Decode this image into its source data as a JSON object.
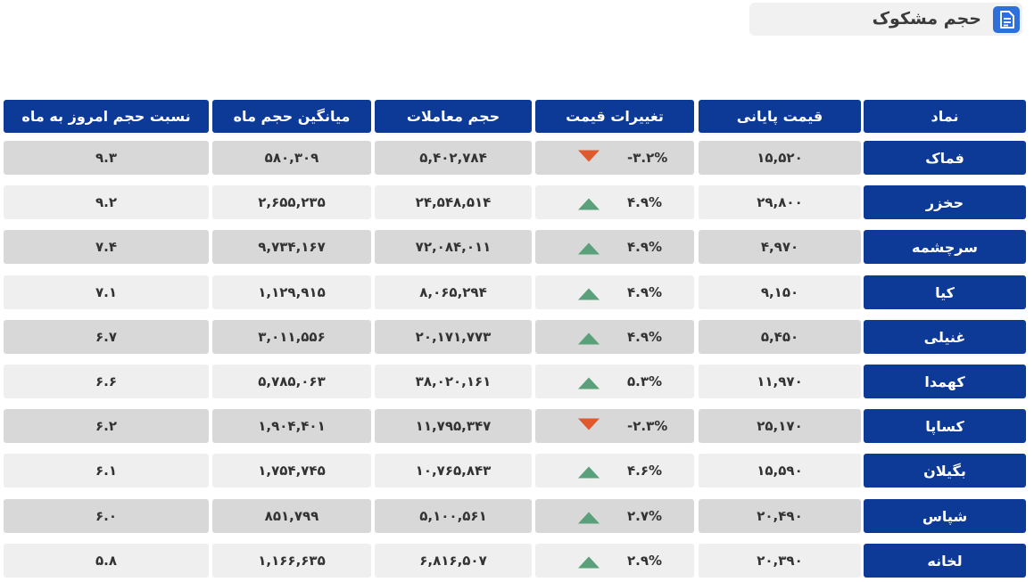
{
  "title": "حجم مشکوک",
  "icon": "document-icon",
  "colors": {
    "header": "#0e3a97",
    "up": "#5aa07a",
    "down": "#e0582e"
  },
  "headers": {
    "symbol": "نماد",
    "final_price": "قیمت پایانی",
    "price_change": "تغییرات قیمت",
    "volume": "حجم معاملات",
    "avg_month_volume": "میانگین حجم ماه",
    "ratio": "نسبت حجم امروز به ماه"
  },
  "rows": [
    {
      "symbol": "فماک",
      "final_price": "۱۵,۵۲۰",
      "change": "-۳.۲%",
      "direction": "down",
      "volume": "۵,۴۰۲,۷۸۴",
      "avg": "۵۸۰,۳۰۹",
      "ratio": "۹.۳"
    },
    {
      "symbol": "حخزر",
      "final_price": "۲۹,۸۰۰",
      "change": "۴.۹%",
      "direction": "up",
      "volume": "۲۴,۵۴۸,۵۱۴",
      "avg": "۲,۶۵۵,۲۳۵",
      "ratio": "۹.۲"
    },
    {
      "symbol": "سرچشمه",
      "final_price": "۴,۹۷۰",
      "change": "۴.۹%",
      "direction": "up",
      "volume": "۷۲,۰۸۴,۰۱۱",
      "avg": "۹,۷۳۴,۱۶۷",
      "ratio": "۷.۴"
    },
    {
      "symbol": "کیا",
      "final_price": "۹,۱۵۰",
      "change": "۴.۹%",
      "direction": "up",
      "volume": "۸,۰۶۵,۲۹۴",
      "avg": "۱,۱۲۹,۹۱۵",
      "ratio": "۷.۱"
    },
    {
      "symbol": "غنیلی",
      "final_price": "۵,۴۵۰",
      "change": "۴.۹%",
      "direction": "up",
      "volume": "۲۰,۱۷۱,۷۷۳",
      "avg": "۳,۰۱۱,۵۵۶",
      "ratio": "۶.۷"
    },
    {
      "symbol": "کهمدا",
      "final_price": "۱۱,۹۷۰",
      "change": "۵.۳%",
      "direction": "up",
      "volume": "۳۸,۰۲۰,۱۶۱",
      "avg": "۵,۷۸۵,۰۶۳",
      "ratio": "۶.۶"
    },
    {
      "symbol": "کساپا",
      "final_price": "۲۵,۱۷۰",
      "change": "-۲.۳%",
      "direction": "down",
      "volume": "۱۱,۷۹۵,۳۴۷",
      "avg": "۱,۹۰۴,۴۰۱",
      "ratio": "۶.۲"
    },
    {
      "symbol": "بگیلان",
      "final_price": "۱۵,۵۹۰",
      "change": "۴.۶%",
      "direction": "up",
      "volume": "۱۰,۷۶۵,۸۴۳",
      "avg": "۱,۷۵۴,۷۴۵",
      "ratio": "۶.۱"
    },
    {
      "symbol": "شپاس",
      "final_price": "۲۰,۴۹۰",
      "change": "۲.۷%",
      "direction": "up",
      "volume": "۵,۱۰۰,۵۶۱",
      "avg": "۸۵۱,۷۹۹",
      "ratio": "۶.۰"
    },
    {
      "symbol": "لخانه",
      "final_price": "۲۰,۳۹۰",
      "change": "۲.۹%",
      "direction": "up",
      "volume": "۶,۸۱۶,۵۰۷",
      "avg": "۱,۱۶۶,۶۳۵",
      "ratio": "۵.۸"
    }
  ]
}
